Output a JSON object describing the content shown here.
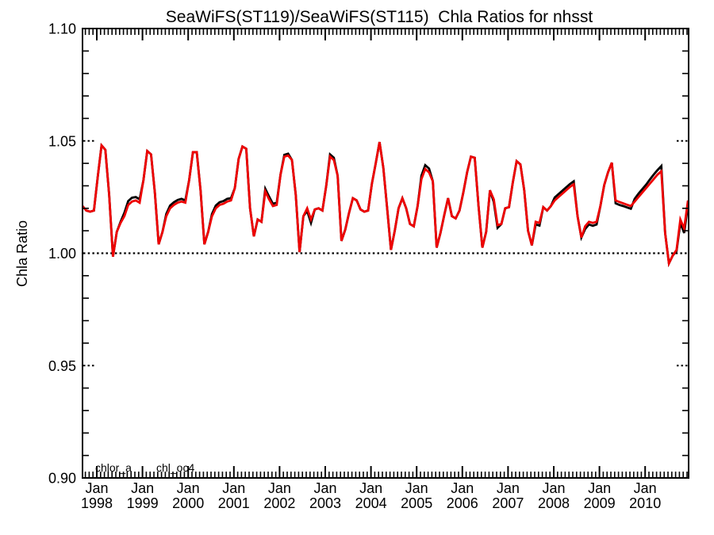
{
  "chart_data": {
    "type": "line",
    "title": "SeaWiFS(ST119)/SeaWiFS(ST115)  Chla Ratios for nhsst",
    "ylabel": "Chla Ratio",
    "xlabel": "",
    "xlim": [
      1997.6875,
      2010.9514
    ],
    "ylim": [
      0.9,
      1.1
    ],
    "grid": "dotted reference line at y=1.00 across plot; short dotted stubs at y=0.95 and y=1.05 at both axes",
    "legend_position": "bottom-left inside plot",
    "reference_line_y": 1.0,
    "grid_stub_values": [
      0.95,
      1.05
    ],
    "y_minor_step": 0.01,
    "x_minor_per_year": 12,
    "y_ticks": [
      {
        "value": 0.9,
        "label": "0.90"
      },
      {
        "value": 0.95,
        "label": "0.95"
      },
      {
        "value": 1.0,
        "label": "1.00"
      },
      {
        "value": 1.05,
        "label": "1.05"
      },
      {
        "value": 1.1,
        "label": "1.10"
      }
    ],
    "x_ticks": [
      {
        "value": 1998,
        "line1": "Jan",
        "line2": "1998"
      },
      {
        "value": 1999,
        "line1": "Jan",
        "line2": "1999"
      },
      {
        "value": 2000,
        "line1": "Jan",
        "line2": "2000"
      },
      {
        "value": 2001,
        "line1": "Jan",
        "line2": "2001"
      },
      {
        "value": 2002,
        "line1": "Jan",
        "line2": "2002"
      },
      {
        "value": 2003,
        "line1": "Jan",
        "line2": "2003"
      },
      {
        "value": 2004,
        "line1": "Jan",
        "line2": "2004"
      },
      {
        "value": 2005,
        "line1": "Jan",
        "line2": "2005"
      },
      {
        "value": 2006,
        "line1": "Jan",
        "line2": "2006"
      },
      {
        "value": 2007,
        "line1": "Jan",
        "line2": "2007"
      },
      {
        "value": 2008,
        "line1": "Jan",
        "line2": "2008"
      },
      {
        "value": 2009,
        "line1": "Jan",
        "line2": "2009"
      },
      {
        "value": 2010,
        "line1": "Jan",
        "line2": "2010"
      }
    ],
    "x_start": 1997.6875,
    "x_step": 0.0833333,
    "series": [
      {
        "name": "chlor_a",
        "color": "#000000",
        "values": [
          1.021,
          1.019,
          1.0185,
          1.019,
          1.034,
          1.048,
          1.046,
          1.026,
          0.9985,
          1.0095,
          1.014,
          1.018,
          1.0232,
          1.0247,
          1.025,
          1.024,
          1.0325,
          1.0455,
          1.044,
          1.027,
          1.004,
          1.0095,
          1.0175,
          1.0212,
          1.0227,
          1.0237,
          1.0242,
          1.0235,
          1.0325,
          1.045,
          1.045,
          1.028,
          1.004,
          1.0095,
          1.0175,
          1.0212,
          1.0227,
          1.0232,
          1.0242,
          1.0245,
          1.029,
          1.042,
          1.0475,
          1.0465,
          1.02,
          1.0075,
          1.015,
          1.014,
          1.0287,
          1.0252,
          1.022,
          1.0225,
          1.035,
          1.0438,
          1.0443,
          1.0415,
          1.026,
          1.0005,
          1.0165,
          1.0188,
          1.0135,
          1.0195,
          1.02,
          1.019,
          1.03,
          1.044,
          1.0425,
          1.0345,
          1.0055,
          1.0105,
          1.018,
          1.0245,
          1.0235,
          1.0195,
          1.0185,
          1.019,
          1.031,
          1.04,
          1.0495,
          1.038,
          1.02,
          1.0015,
          1.01,
          1.02,
          1.0245,
          1.02,
          1.013,
          1.012,
          1.021,
          1.0345,
          1.0392,
          1.0377,
          1.032,
          1.0025,
          1.009,
          1.017,
          1.0245,
          1.0165,
          1.0155,
          1.019,
          1.027,
          1.036,
          1.043,
          1.0425,
          1.021,
          1.0025,
          1.0095,
          1.028,
          1.0228,
          1.0113,
          1.013,
          1.02,
          1.0205,
          1.0315,
          1.041,
          1.0395,
          1.028,
          1.01,
          1.0035,
          1.0128,
          1.0123,
          1.0205,
          1.019,
          1.021,
          1.0248,
          1.0263,
          1.0278,
          1.0293,
          1.0308,
          1.032,
          1.0165,
          1.007,
          1.0108,
          1.0128,
          1.0122,
          1.0128,
          1.021,
          1.0303,
          1.036,
          1.0403,
          1.0222,
          1.0215,
          1.021,
          1.0204,
          1.0198,
          1.0242,
          1.0265,
          1.0285,
          1.0305,
          1.0328,
          1.035,
          1.037,
          1.0388,
          1.009,
          0.9955,
          0.999,
          1.001,
          1.0135,
          1.009,
          1.0215
        ]
      },
      {
        "name": "chl_oc4",
        "color": "#ee0000",
        "values": [
          1.021,
          1.019,
          1.0185,
          1.019,
          1.034,
          1.048,
          1.046,
          1.026,
          0.9985,
          1.0095,
          1.0135,
          1.0165,
          1.0215,
          1.023,
          1.0235,
          1.0225,
          1.0325,
          1.0455,
          1.044,
          1.027,
          1.004,
          1.0095,
          1.0165,
          1.02,
          1.0215,
          1.0225,
          1.023,
          1.0225,
          1.0325,
          1.045,
          1.045,
          1.028,
          1.004,
          1.0095,
          1.0165,
          1.02,
          1.0215,
          1.022,
          1.023,
          1.0235,
          1.029,
          1.042,
          1.0475,
          1.0465,
          1.02,
          1.0075,
          1.015,
          1.014,
          1.0275,
          1.024,
          1.021,
          1.0215,
          1.035,
          1.043,
          1.0435,
          1.0415,
          1.026,
          1.0005,
          1.0165,
          1.02,
          1.015,
          1.0195,
          1.02,
          1.019,
          1.03,
          1.043,
          1.0415,
          1.0345,
          1.0055,
          1.0105,
          1.018,
          1.0245,
          1.0235,
          1.0195,
          1.0185,
          1.019,
          1.031,
          1.04,
          1.0495,
          1.038,
          1.02,
          1.0015,
          1.01,
          1.02,
          1.0245,
          1.02,
          1.013,
          1.012,
          1.021,
          1.033,
          1.0375,
          1.036,
          1.032,
          1.0025,
          1.009,
          1.017,
          1.0245,
          1.0165,
          1.0155,
          1.019,
          1.027,
          1.036,
          1.043,
          1.0425,
          1.021,
          1.0025,
          1.0095,
          1.028,
          1.024,
          1.0125,
          1.013,
          1.02,
          1.0205,
          1.0315,
          1.041,
          1.0395,
          1.028,
          1.01,
          1.0035,
          1.014,
          1.0135,
          1.0205,
          1.019,
          1.021,
          1.0235,
          1.025,
          1.0265,
          1.028,
          1.0295,
          1.0307,
          1.0165,
          1.007,
          1.012,
          1.014,
          1.0135,
          1.014,
          1.021,
          1.0303,
          1.036,
          1.0403,
          1.0235,
          1.0228,
          1.0222,
          1.0216,
          1.021,
          1.023,
          1.025,
          1.027,
          1.029,
          1.031,
          1.033,
          1.035,
          1.0365,
          1.009,
          0.9955,
          0.999,
          1.0015,
          1.015,
          1.011,
          1.0235
        ]
      }
    ]
  },
  "legend": {
    "chlor_a_label": "chlor_a",
    "chl_oc4_label": "chl_oc4"
  },
  "colors": {
    "chlor_a": "#000000",
    "chl_oc4": "#ee0000",
    "axis": "#000000",
    "background": "#ffffff"
  }
}
